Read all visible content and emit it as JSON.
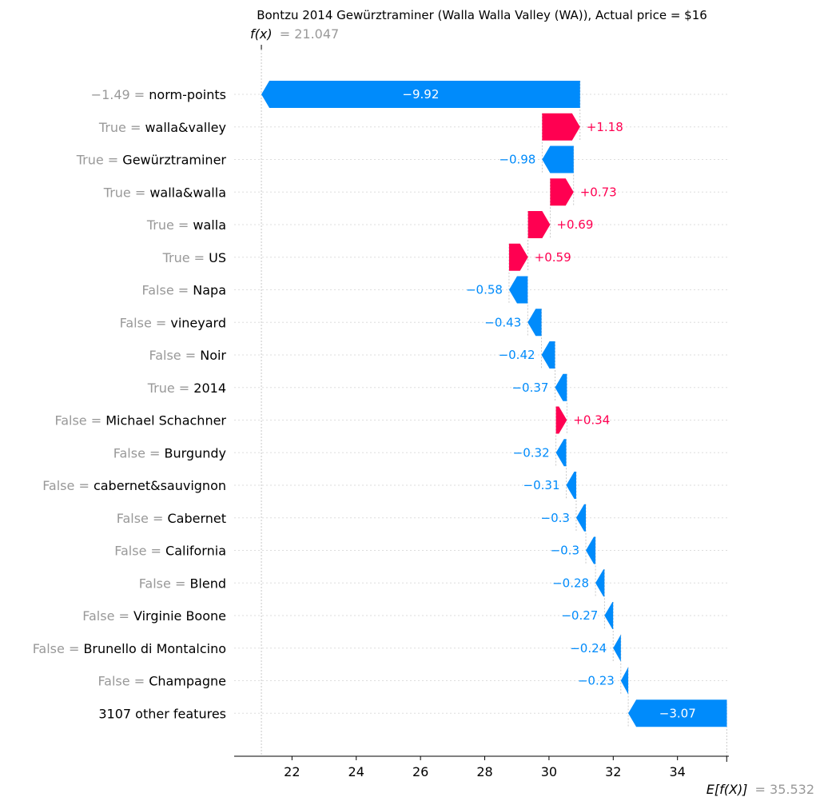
{
  "chart_data": {
    "type": "waterfall",
    "title": "Bontzu 2014 Gewürztraminer (Walla Walla Valley (WA)), Actual price = $16",
    "fx_label": "f(x)",
    "fx_value_text": "= 21.047",
    "fx_value": 21.047,
    "efx_label": "E[f(X)]",
    "efx_value_text": "= 35.532",
    "efx_value": 35.532,
    "xlim": [
      20.2,
      35.6
    ],
    "xticks": [
      22,
      24,
      26,
      28,
      30,
      32,
      34
    ],
    "xtick_labels": [
      "22",
      "24",
      "26",
      "28",
      "30",
      "32",
      "34"
    ],
    "features": [
      {
        "value": "−1.49 = ",
        "name": "norm-points",
        "contrib": -9.92,
        "label": "−9.92"
      },
      {
        "value": "True = ",
        "name": "walla&valley",
        "contrib": 1.18,
        "label": "+1.18"
      },
      {
        "value": "True = ",
        "name": "Gewürztraminer",
        "contrib": -0.98,
        "label": "−0.98"
      },
      {
        "value": "True = ",
        "name": "walla&walla",
        "contrib": 0.73,
        "label": "+0.73"
      },
      {
        "value": "True = ",
        "name": "walla",
        "contrib": 0.69,
        "label": "+0.69"
      },
      {
        "value": "True = ",
        "name": "US",
        "contrib": 0.59,
        "label": "+0.59"
      },
      {
        "value": "False = ",
        "name": "Napa",
        "contrib": -0.58,
        "label": "−0.58"
      },
      {
        "value": "False = ",
        "name": "vineyard",
        "contrib": -0.43,
        "label": "−0.43"
      },
      {
        "value": "False = ",
        "name": "Noir",
        "contrib": -0.42,
        "label": "−0.42"
      },
      {
        "value": "True = ",
        "name": "2014",
        "contrib": -0.37,
        "label": "−0.37"
      },
      {
        "value": "False = ",
        "name": "Michael Schachner",
        "contrib": 0.34,
        "label": "+0.34"
      },
      {
        "value": "False = ",
        "name": "Burgundy",
        "contrib": -0.32,
        "label": "−0.32"
      },
      {
        "value": "False = ",
        "name": "cabernet&sauvignon",
        "contrib": -0.31,
        "label": "−0.31"
      },
      {
        "value": "False = ",
        "name": "Cabernet",
        "contrib": -0.3,
        "label": "−0.3"
      },
      {
        "value": "False = ",
        "name": "California",
        "contrib": -0.3,
        "label": "−0.3"
      },
      {
        "value": "False = ",
        "name": "Blend",
        "contrib": -0.28,
        "label": "−0.28"
      },
      {
        "value": "False = ",
        "name": "Virginie Boone",
        "contrib": -0.27,
        "label": "−0.27"
      },
      {
        "value": "False = ",
        "name": "Brunello di Montalcino",
        "contrib": -0.24,
        "label": "−0.24"
      },
      {
        "value": "False = ",
        "name": "Champagne",
        "contrib": -0.23,
        "label": "−0.23"
      },
      {
        "value": "",
        "name": "3107 other features",
        "contrib": -3.07,
        "label": "−3.07"
      }
    ],
    "colors": {
      "positive": "#ff0051",
      "negative": "#008bfb",
      "muted": "#999999"
    }
  }
}
